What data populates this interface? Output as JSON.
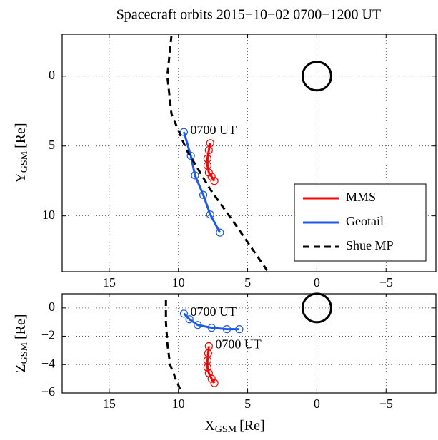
{
  "chart_data": [
    {
      "type": "line",
      "title": "Spacecraft orbits  2015−10−02  0700−1200 UT",
      "ylabel": "Y",
      "ylabel_sub": "GSM",
      "ylabel_unit": "[Re]",
      "xlim": [
        18.4,
        -8.6
      ],
      "ylim": [
        14,
        -3
      ],
      "xticks": [
        15,
        10,
        5,
        0,
        {
          "value": -5,
          "label": "−5"
        }
      ],
      "yticks": [
        0,
        5,
        10
      ],
      "grid": true,
      "legend": "lower right",
      "series": [
        {
          "name": "MMS",
          "color": "#ff0000",
          "dashed": false,
          "markers": true,
          "x": [
            7.7,
            7.8,
            7.9,
            7.9,
            7.8,
            7.6,
            7.4
          ],
          "values": [
            4.8,
            5.3,
            5.9,
            6.4,
            6.9,
            7.2,
            7.5
          ]
        },
        {
          "name": "Geotail",
          "color": "#1f5ae6",
          "dashed": false,
          "markers": true,
          "start_label": "0700 UT",
          "start_label_color": "#000000",
          "x": [
            9.6,
            9.1,
            8.8,
            8.2,
            7.7,
            7.0
          ],
          "values": [
            4.0,
            5.7,
            7.1,
            8.5,
            9.9,
            11.2
          ]
        },
        {
          "name": "Shue MP",
          "color": "#000000",
          "dashed": true,
          "markers": false,
          "x": [
            10.5,
            10.8,
            10.5,
            9.4,
            7.7,
            5.9,
            3.6
          ],
          "values": [
            -2.9,
            0,
            2.7,
            5.3,
            8.1,
            10.6,
            13.9
          ]
        }
      ]
    },
    {
      "type": "line",
      "ylabel": "Z",
      "ylabel_sub": "GSM",
      "ylabel_unit": "[Re]",
      "xlabel": "X",
      "xlabel_sub": "GSM",
      "xlabel_unit": "[Re]",
      "xlim": [
        18.4,
        -8.6
      ],
      "ylim": [
        -6,
        1
      ],
      "xticks": [
        15,
        10,
        5,
        0,
        {
          "value": -5,
          "label": "−5"
        }
      ],
      "yticks": [
        0,
        {
          "value": -2,
          "label": "−2"
        },
        {
          "value": -4,
          "label": "−4"
        },
        {
          "value": -6,
          "label": "−6"
        }
      ],
      "grid": true,
      "series": [
        {
          "name": "MMS",
          "color": "#ff0000",
          "dashed": false,
          "markers": true,
          "start_label": "0700 UT",
          "start_label_color": "#ff0000",
          "x": [
            7.8,
            7.85,
            7.9,
            7.9,
            7.8,
            7.6,
            7.4
          ],
          "values": [
            -2.7,
            -3.2,
            -3.7,
            -4.2,
            -4.6,
            -5.0,
            -5.3
          ]
        },
        {
          "name": "Geotail",
          "color": "#1f5ae6",
          "dashed": false,
          "markers": true,
          "start_label": "0700 UT",
          "start_label_color": "#1f5ae6",
          "x": [
            9.6,
            9.2,
            8.6,
            7.6,
            6.5,
            5.6
          ],
          "values": [
            -0.4,
            -0.8,
            -1.2,
            -1.4,
            -1.5,
            -1.5
          ]
        },
        {
          "name": "Shue MP",
          "color": "#000000",
          "dashed": true,
          "markers": false,
          "x": [
            10.9,
            10.9,
            10.8,
            10.6,
            10.2,
            9.8
          ],
          "values": [
            0.6,
            -1.0,
            -2.5,
            -4.0,
            -5.0,
            -5.9
          ]
        }
      ]
    }
  ]
}
